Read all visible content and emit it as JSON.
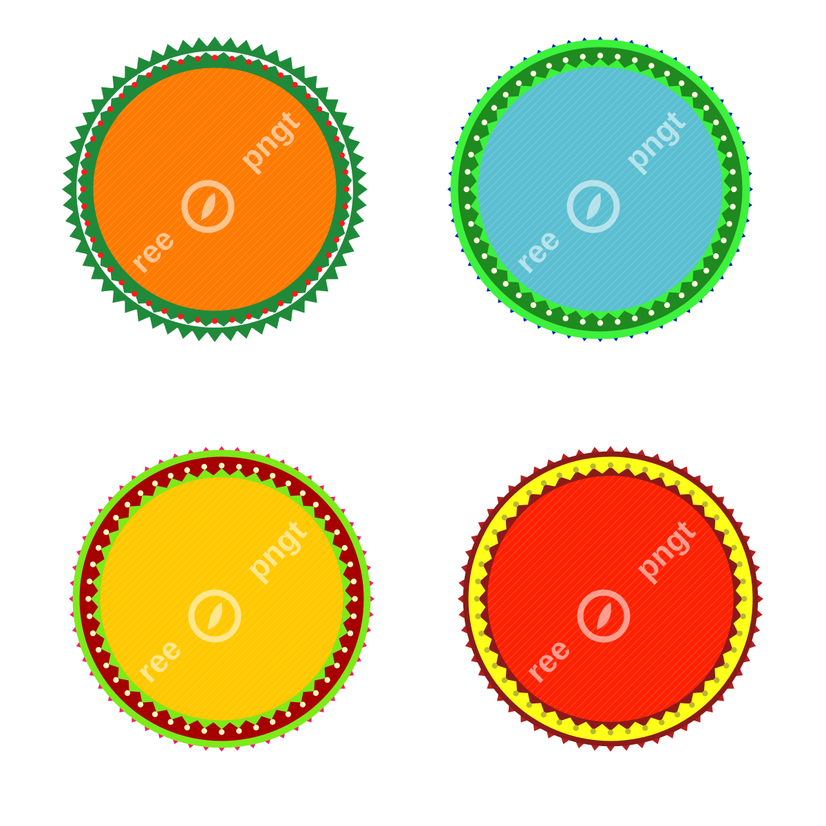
{
  "watermark": {
    "brand": "pngtree",
    "color": "#ffffff"
  },
  "badges": [
    {
      "id": "orange-badge",
      "center_color": "#ff7a00",
      "center_stripe_color": "#ff9a1a",
      "outer_teeth_color": "#1f8a3a",
      "band_color": "#ffffff",
      "ring_color": "#1f8a3a",
      "inner_teeth_color": "#1f8a3a",
      "dot_color": "#ff1a1a",
      "dot_count": 48,
      "outer_teeth_count": 60,
      "inner_teeth_count": 48
    },
    {
      "id": "blue-badge",
      "center_color": "#5bbfd1",
      "center_stripe_color": "#8ad0c7",
      "outer_teeth_color": "#0019d6",
      "band_color": "#1f8a1f",
      "ring_color": "#3cf23c",
      "inner_teeth_color": "#3cf23c",
      "dot_color": "#fffde0",
      "dot_count": 48,
      "outer_teeth_count": 60,
      "inner_teeth_count": 48
    },
    {
      "id": "yellow-badge",
      "center_color": "#ffc800",
      "center_stripe_color": "#ffd733",
      "outer_teeth_color": "#ff1a73",
      "band_color": "#a60000",
      "ring_color": "#7dea1a",
      "inner_teeth_color": "#7dea1a",
      "dot_color": "#fff4c0",
      "dot_count": 48,
      "outer_teeth_count": 60,
      "inner_teeth_count": 48
    },
    {
      "id": "red-badge",
      "center_color": "#ff2100",
      "center_stripe_color": "#ff4d1a",
      "outer_teeth_color": "#b3201f",
      "band_color": "#ffff1a",
      "ring_color": "#8a1a1a",
      "inner_teeth_color": "#8a1a1a",
      "dot_color": "#b8b830",
      "dot_count": 48,
      "outer_teeth_count": 60,
      "inner_teeth_count": 48
    }
  ]
}
